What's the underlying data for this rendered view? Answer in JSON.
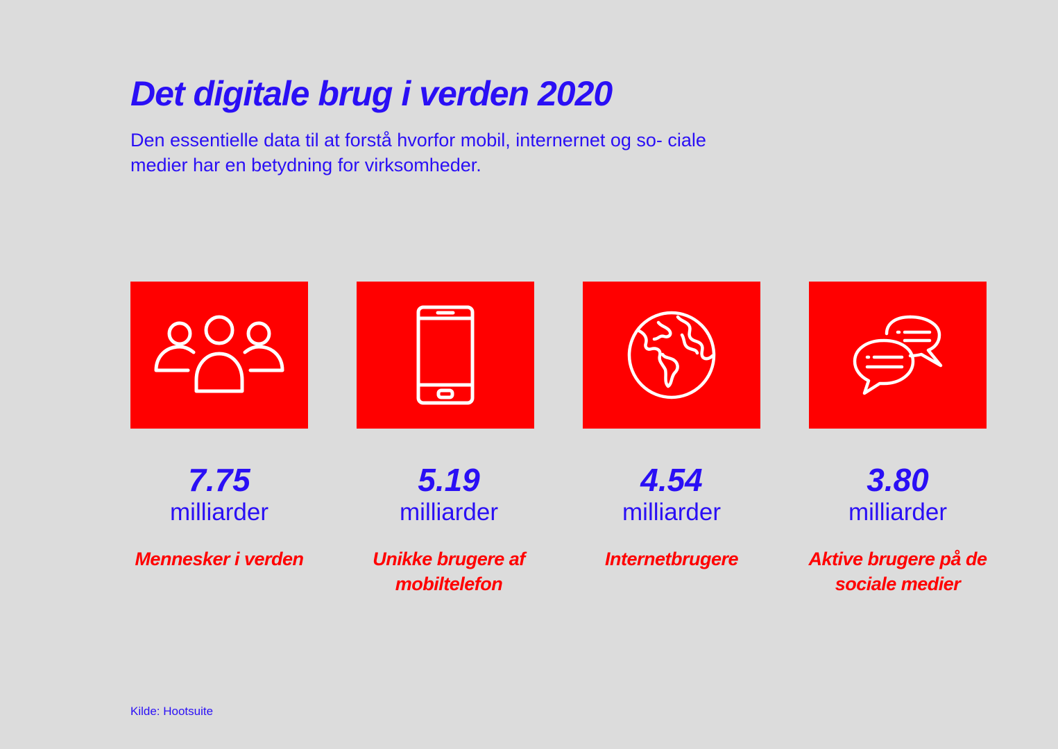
{
  "header": {
    "title": "Det digitale brug i verden 2020",
    "subtitle": "Den essentielle data til at forstå hvorfor mobil, internernet og so- ciale medier har en betydning for virksomheder."
  },
  "colors": {
    "background": "#dcdcdc",
    "accent_blue": "#2a0ff5",
    "tile_red": "#ff0000",
    "icon_white": "#ffffff"
  },
  "stats": [
    {
      "icon": "people-group-icon",
      "value": "7.75",
      "unit": "milliarder",
      "label": "Mennesker i verden"
    },
    {
      "icon": "mobile-phone-icon",
      "value": "5.19",
      "unit": "milliarder",
      "label": "Unikke brugere af mobiltelefon"
    },
    {
      "icon": "globe-icon",
      "value": "4.54",
      "unit": "milliarder",
      "label": "Internetbrugere"
    },
    {
      "icon": "chat-bubbles-icon",
      "value": "3.80",
      "unit": "milliarder",
      "label": "Aktive brugere på de sociale medier"
    }
  ],
  "footer": {
    "source": "Kilde: Hootsuite"
  }
}
